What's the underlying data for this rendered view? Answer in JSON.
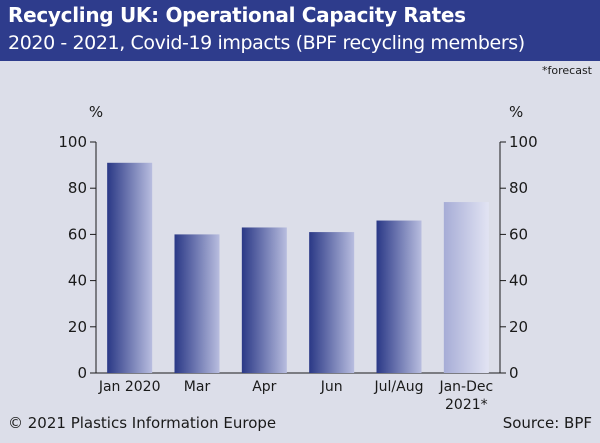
{
  "header": {
    "title": "Recycling UK: Operational Capacity Rates",
    "subtitle": "2020 - 2021, Covid-19 impacts (BPF recycling members)"
  },
  "note": "*forecast",
  "footer": {
    "copyright": "© 2021 Plastics Information Europe",
    "source": "Source: BPF"
  },
  "colors": {
    "header_bg": "#2e3c8c",
    "background": "#dcdee9",
    "bar_dark": "#2a3886",
    "bar_light": "#b8bddf",
    "forecast_dark": "#a6acd6",
    "forecast_light": "#e2e4f3"
  },
  "chart_data": {
    "type": "bar",
    "categories": [
      "Jan 2020",
      "Mar",
      "Apr",
      "Jun",
      "Jul/Aug",
      "Jan-Dec\n2021*"
    ],
    "values": [
      91,
      60,
      63,
      61,
      66,
      74
    ],
    "forecast": [
      false,
      false,
      false,
      false,
      false,
      true
    ],
    "ylim": [
      0,
      100
    ],
    "yticks": [
      0,
      20,
      40,
      60,
      80,
      100
    ],
    "ylabel_left": "%",
    "ylabel_right": "%",
    "grid": false
  }
}
